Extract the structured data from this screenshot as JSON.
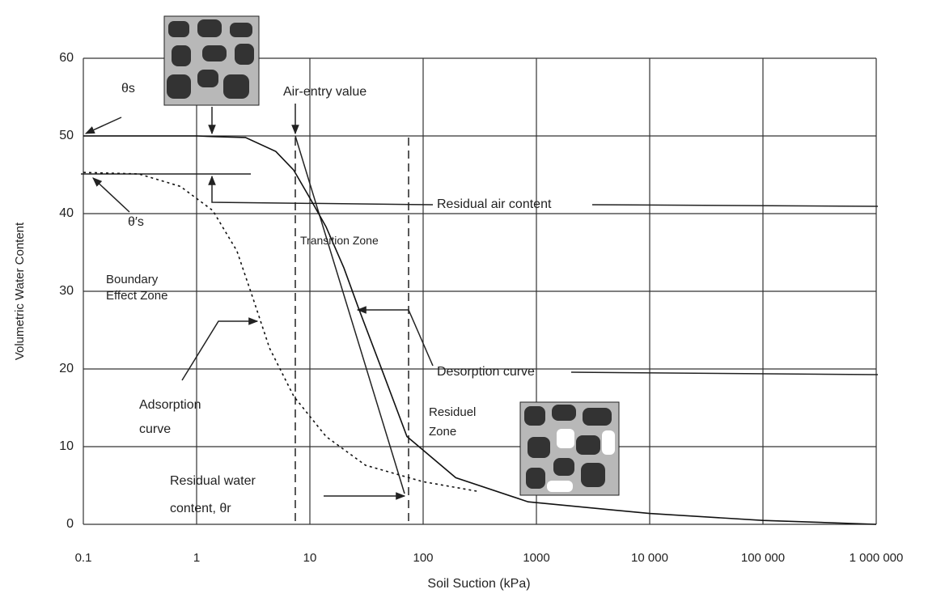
{
  "chart_data": {
    "type": "line",
    "xscale": "log",
    "xlabel": "Soil Suction (kPa)",
    "ylabel": "Volumetric Water Content",
    "xlim": [
      0.1,
      1000000
    ],
    "ylim": [
      0,
      60
    ],
    "xticks": [
      0.1,
      1,
      10,
      100,
      1000,
      {
        "value": 10000,
        "label": "10 000"
      },
      {
        "value": 100000,
        "label": "100 000"
      },
      {
        "value": 1000000,
        "label": "1 000 000"
      }
    ],
    "yticks": [
      0,
      10,
      20,
      30,
      40,
      50,
      60
    ],
    "grid": true,
    "series": [
      {
        "name": "Desorption curve",
        "color": "#111111",
        "dash": "solid",
        "x": [
          0.1,
          1,
          1.5,
          2.7,
          5,
          7.2,
          10,
          13.9,
          20,
          26.8,
          44,
          72,
          194,
          846,
          10000,
          100000,
          1000000
        ],
        "values": [
          50,
          50,
          49.9,
          49.8,
          48,
          45.6,
          42,
          38.3,
          33,
          27.9,
          19.6,
          11.3,
          6,
          2.9,
          1.4,
          0.5,
          0
        ]
      },
      {
        "name": "Adsorption curve",
        "color": "#111111",
        "dash": "dotted",
        "x": [
          0.1,
          0.31,
          0.72,
          1.39,
          2.27,
          3.16,
          4.4,
          7.2,
          13.9,
          31,
          99,
          317
        ],
        "values": [
          45.3,
          45.1,
          43.5,
          40.4,
          35.2,
          29,
          22.7,
          16.5,
          11.3,
          7.6,
          5.5,
          4.2
        ]
      }
    ],
    "annotations": [
      "θs",
      "θ′s",
      "Air-entry value",
      "Residual air content",
      "Transition Zone",
      "Boundary Effect Zone",
      "Residuel Zone",
      "Residual water content, θr"
    ]
  }
}
